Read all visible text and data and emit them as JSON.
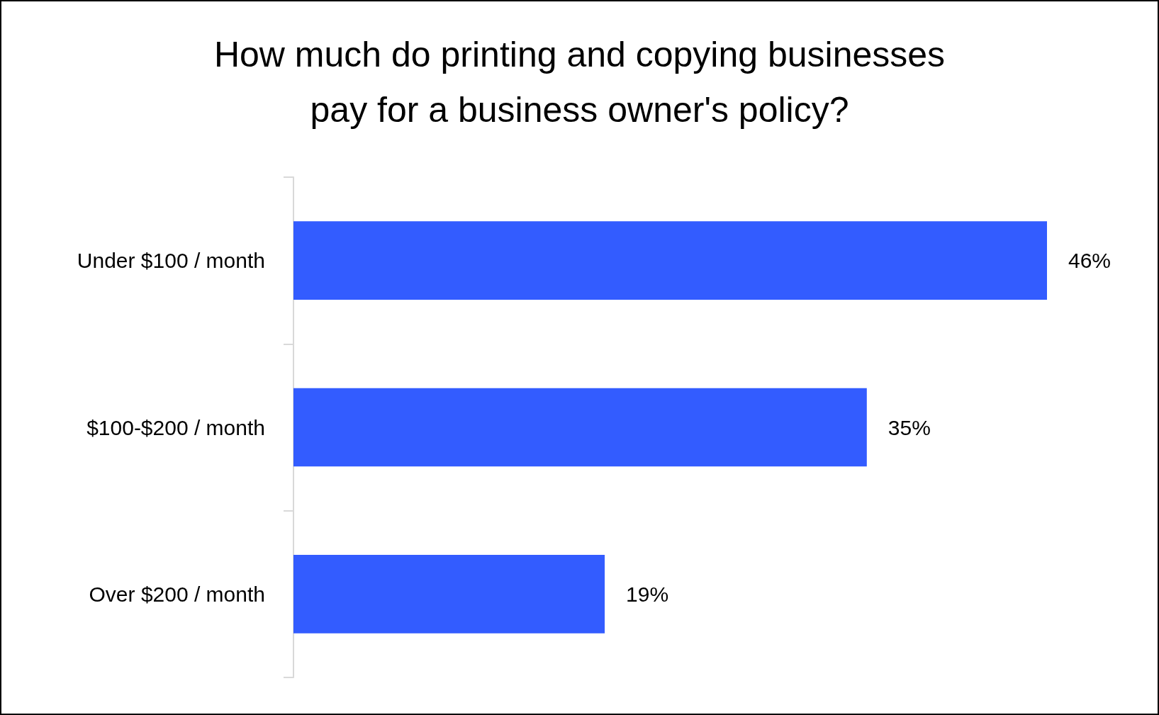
{
  "chart_data": {
    "type": "bar",
    "orientation": "horizontal",
    "title": "How much do printing and copying businesses pay for a business owner's policy?",
    "categories": [
      "Under $100 / month",
      "$100-$200 / month",
      "Over $200 / month"
    ],
    "values": [
      46,
      35,
      19
    ],
    "color": "#335cff",
    "value_labels": [
      "46%",
      "35%",
      "19%"
    ]
  }
}
